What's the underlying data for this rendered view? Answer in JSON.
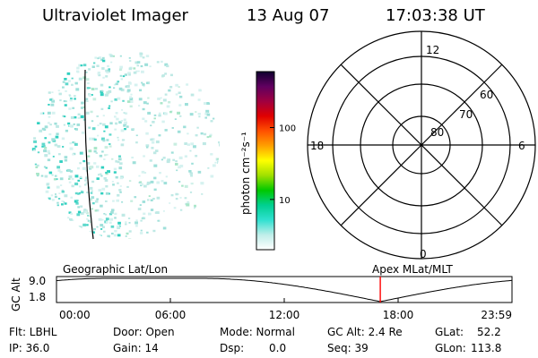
{
  "header": {
    "title": "Ultraviolet Imager",
    "date": "13 Aug 07",
    "time": "17:03:38 UT"
  },
  "colorbar": {
    "unit_label": "photon cm⁻²s⁻¹",
    "ticks": [
      {
        "label": "10",
        "value": 10
      },
      {
        "label": "100",
        "value": 100
      }
    ],
    "stops": [
      "#ffffff",
      "#bfeee9",
      "#30e0d0",
      "#00d090",
      "#00c800",
      "#a0e000",
      "#ffff00",
      "#ffa000",
      "#ff5000",
      "#e00000",
      "#a00040",
      "#600060",
      "#100030"
    ]
  },
  "polar_plot": {
    "mlt_labels": {
      "top": "12",
      "bottom": "0",
      "left": "18",
      "right": "6"
    },
    "latitude_rings": [
      "80",
      "70",
      "60"
    ]
  },
  "timeline": {
    "left_title": "Geographic Lat/Lon",
    "right_title": "Apex MLat/MLT",
    "y_axis_label": "GC Alt",
    "y_ticks": [
      "9.0",
      "1.8"
    ],
    "x_ticks": [
      "00:00",
      "06:00",
      "12:00",
      "18:00",
      "23:59"
    ],
    "current_time_hours": 17.06,
    "marker_color": "#ff0000"
  },
  "footer": {
    "flt": "Flt: LBHL",
    "ip": "IP: 36.0",
    "door": "Door: Open",
    "gain": "Gain: 14",
    "mode": "Mode: Normal",
    "dsp_label": "Dsp:",
    "dsp_value": "0.0",
    "gc_alt": "GC Alt: 2.4 Re",
    "seq": "Seq: 39",
    "glat_label": "GLat:",
    "glat_value": "52.2",
    "glon_label": "GLon:",
    "glon_value": "113.8"
  }
}
